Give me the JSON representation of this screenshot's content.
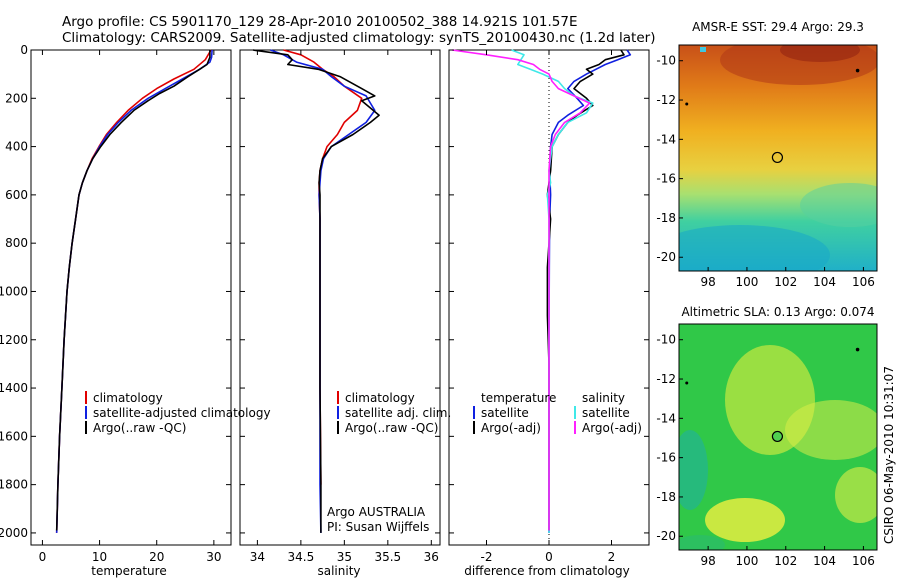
{
  "header": {
    "line1": "Argo profile: CS 5901170_129 28-Apr-2010 20100502_388 14.921S 101.57E",
    "line2": "Climatology: CARS2009. Satellite-adjusted climatology: synTS_20100430.nc (1.2d later)"
  },
  "side_label": "CSIRO 06-May-2010 10:31:07",
  "colors": {
    "climatology": "#e00000",
    "satellite": "#1020e0",
    "argo": "#000000",
    "satellite_salinity": "#40e8e8",
    "argo_salinity_adj": "#ff20ff"
  },
  "chart_data": [
    {
      "id": "temperature",
      "type": "line",
      "xlabel": "temperature",
      "xlim": [
        -2,
        33
      ],
      "xticks": [
        0,
        10,
        20,
        30
      ],
      "ylim": [
        0,
        2050
      ],
      "yticks": [
        0,
        200,
        400,
        600,
        800,
        1000,
        1200,
        1400,
        1600,
        1800,
        2000
      ],
      "y_reversed": true,
      "legend": [
        "climatology",
        "satellite-adjusted climatology",
        "Argo(..raw -QC)"
      ],
      "legend_placement": "lower-right",
      "series": [
        {
          "name": "climatology",
          "color": "#e00000",
          "points": [
            [
              29.5,
              0
            ],
            [
              28.5,
              40
            ],
            [
              26.5,
              80
            ],
            [
              23,
              120
            ],
            [
              20,
              160
            ],
            [
              17.5,
              200
            ],
            [
              15,
              250
            ],
            [
              13,
              300
            ],
            [
              11.2,
              350
            ],
            [
              9.9,
              400
            ],
            [
              8.7,
              450
            ],
            [
              7.8,
              500
            ],
            [
              7,
              550
            ],
            [
              6.4,
              600
            ],
            [
              5.8,
              700
            ],
            [
              5.2,
              800
            ],
            [
              4.7,
              900
            ],
            [
              4.3,
              1000
            ],
            [
              3.8,
              1200
            ],
            [
              3.4,
              1400
            ],
            [
              3,
              1600
            ],
            [
              2.7,
              1800
            ],
            [
              2.5,
              2000
            ]
          ]
        },
        {
          "name": "satellite-adjusted climatology",
          "color": "#1020e0",
          "points": [
            [
              29.7,
              0
            ],
            [
              29.6,
              30
            ],
            [
              29.3,
              50
            ],
            [
              27.5,
              80
            ],
            [
              24.5,
              120
            ],
            [
              21.5,
              160
            ],
            [
              18.5,
              200
            ],
            [
              15.5,
              250
            ],
            [
              13.3,
              300
            ],
            [
              11.4,
              350
            ],
            [
              10,
              400
            ],
            [
              8.8,
              450
            ],
            [
              7.8,
              500
            ],
            [
              7,
              550
            ],
            [
              6.4,
              600
            ],
            [
              5.8,
              700
            ],
            [
              5.2,
              800
            ],
            [
              4.7,
              900
            ],
            [
              4.3,
              1000
            ],
            [
              3.8,
              1200
            ],
            [
              3.4,
              1400
            ],
            [
              3,
              1600
            ],
            [
              2.7,
              1800
            ],
            [
              2.5,
              2000
            ]
          ]
        },
        {
          "name": "Argo(..raw -QC)",
          "color": "#000000",
          "points": [
            [
              29.3,
              0
            ],
            [
              29.3,
              30
            ],
            [
              28.8,
              60
            ],
            [
              27.5,
              80
            ],
            [
              25.5,
              110
            ],
            [
              23,
              150
            ],
            [
              20.5,
              180
            ],
            [
              18.5,
              210
            ],
            [
              16,
              250
            ],
            [
              13.8,
              300
            ],
            [
              11.8,
              350
            ],
            [
              10.2,
              400
            ],
            [
              8.8,
              450
            ],
            [
              7.8,
              500
            ],
            [
              7,
              550
            ],
            [
              6.4,
              600
            ],
            [
              5.8,
              700
            ],
            [
              5.2,
              800
            ],
            [
              4.7,
              900
            ],
            [
              4.3,
              1000
            ],
            [
              3.8,
              1200
            ],
            [
              3.4,
              1400
            ],
            [
              3,
              1600
            ],
            [
              2.7,
              1800
            ],
            [
              2.5,
              1990
            ]
          ]
        }
      ]
    },
    {
      "id": "salinity",
      "type": "line",
      "xlabel": "salinity",
      "xlim": [
        33.8,
        36.1
      ],
      "xticks": [
        34,
        34.5,
        35,
        35.5,
        36
      ],
      "xtick_labels": [
        "34",
        "34.5",
        "35",
        "35.5",
        "36"
      ],
      "ylim": [
        0,
        2050
      ],
      "y_reversed": true,
      "legend": [
        "climatology",
        "satellite adj. clim.",
        "Argo(..raw -QC)"
      ],
      "legend_placement": "lower-right",
      "annotation": [
        "Argo AUSTRALIA",
        "PI: Susan Wijffels"
      ],
      "series": [
        {
          "name": "climatology",
          "color": "#e00000",
          "points": [
            [
              34.3,
              0
            ],
            [
              34.5,
              20
            ],
            [
              34.65,
              50
            ],
            [
              34.75,
              80
            ],
            [
              34.88,
              110
            ],
            [
              35,
              150
            ],
            [
              35.2,
              200
            ],
            [
              35.15,
              250
            ],
            [
              35,
              300
            ],
            [
              34.92,
              350
            ],
            [
              34.8,
              400
            ],
            [
              34.75,
              450
            ],
            [
              34.72,
              500
            ],
            [
              34.71,
              550
            ],
            [
              34.71,
              600
            ],
            [
              34.72,
              700
            ],
            [
              34.72,
              1000
            ],
            [
              34.72,
              1400
            ],
            [
              34.73,
              1800
            ]
          ]
        },
        {
          "name": "satellite adj. clim.",
          "color": "#1020e0",
          "points": [
            [
              34.15,
              0
            ],
            [
              34.3,
              20
            ],
            [
              34.45,
              50
            ],
            [
              34.75,
              80
            ],
            [
              34.85,
              110
            ],
            [
              35,
              150
            ],
            [
              35.25,
              190
            ],
            [
              35.3,
              220
            ],
            [
              35.35,
              250
            ],
            [
              35.25,
              300
            ],
            [
              35.05,
              350
            ],
            [
              34.85,
              400
            ],
            [
              34.76,
              450
            ],
            [
              34.73,
              500
            ],
            [
              34.72,
              550
            ],
            [
              34.71,
              600
            ],
            [
              34.72,
              700
            ],
            [
              34.72,
              1000
            ],
            [
              34.72,
              1400
            ],
            [
              34.72,
              1800
            ],
            [
              34.73,
              2000
            ]
          ]
        },
        {
          "name": "Argo(..raw -QC)",
          "color": "#000000",
          "points": [
            [
              33.95,
              0
            ],
            [
              34.35,
              20
            ],
            [
              34.4,
              40
            ],
            [
              34.35,
              60
            ],
            [
              34.7,
              80
            ],
            [
              34.95,
              110
            ],
            [
              35.2,
              160
            ],
            [
              35.35,
              190
            ],
            [
              35.2,
              210
            ],
            [
              35.3,
              240
            ],
            [
              35.4,
              270
            ],
            [
              35.3,
              300
            ],
            [
              35.1,
              350
            ],
            [
              34.85,
              400
            ],
            [
              34.75,
              450
            ],
            [
              34.72,
              500
            ],
            [
              34.71,
              550
            ],
            [
              34.72,
              600
            ],
            [
              34.72,
              700
            ],
            [
              34.72,
              1000
            ],
            [
              34.72,
              1400
            ],
            [
              34.73,
              1800
            ],
            [
              34.73,
              2000
            ]
          ]
        }
      ]
    },
    {
      "id": "difference",
      "type": "line",
      "xlabel": "difference from climatology",
      "xlim": [
        -3.2,
        3.2
      ],
      "xticks": [
        -2,
        0,
        2
      ],
      "ylim": [
        0,
        2050
      ],
      "y_reversed": true,
      "legend_groups": [
        {
          "title": "temperature",
          "entries": [
            "satellite",
            "Argo(-adj)"
          ]
        },
        {
          "title": "salinity",
          "entries": [
            "satellite",
            "Argo(-adj)"
          ]
        }
      ],
      "legend_placement": "lower-middle",
      "zero_line": true,
      "series": [
        {
          "name": "temperature satellite",
          "color": "#1020e0",
          "points": [
            [
              2.5,
              0
            ],
            [
              2.6,
              20
            ],
            [
              2.2,
              40
            ],
            [
              1.8,
              60
            ],
            [
              1.5,
              80
            ],
            [
              1.2,
              100
            ],
            [
              0.8,
              130
            ],
            [
              0.6,
              160
            ],
            [
              0.9,
              200
            ],
            [
              1.1,
              230
            ],
            [
              0.6,
              270
            ],
            [
              0.3,
              300
            ],
            [
              0.1,
              350
            ],
            [
              0.05,
              400
            ],
            [
              0.02,
              500
            ],
            [
              0.05,
              600
            ],
            [
              0.02,
              700
            ],
            [
              0.01,
              900
            ],
            [
              0,
              1200
            ],
            [
              0,
              1600
            ],
            [
              0,
              2000
            ]
          ]
        },
        {
          "name": "temperature Argo(-adj)",
          "color": "#000000",
          "points": [
            [
              2.3,
              0
            ],
            [
              2.4,
              20
            ],
            [
              1.8,
              40
            ],
            [
              1.6,
              60
            ],
            [
              1.2,
              80
            ],
            [
              1.4,
              100
            ],
            [
              1,
              130
            ],
            [
              0.8,
              160
            ],
            [
              1.2,
              200
            ],
            [
              1.4,
              230
            ],
            [
              0.9,
              270
            ],
            [
              0.6,
              300
            ],
            [
              0.3,
              350
            ],
            [
              0.1,
              400
            ],
            [
              0.05,
              500
            ],
            [
              -0.05,
              600
            ],
            [
              0.05,
              700
            ],
            [
              -0.05,
              900
            ],
            [
              -0.05,
              1100
            ],
            [
              0,
              1300
            ],
            [
              0,
              1600
            ],
            [
              0,
              1990
            ]
          ]
        },
        {
          "name": "salinity satellite",
          "color": "#40e8e8",
          "points": [
            [
              -1.2,
              0
            ],
            [
              -0.8,
              20
            ],
            [
              -0.9,
              40
            ],
            [
              -1,
              60
            ],
            [
              -0.6,
              80
            ],
            [
              -0.2,
              100
            ],
            [
              0.3,
              130
            ],
            [
              0.5,
              160
            ],
            [
              0.8,
              190
            ],
            [
              1.4,
              220
            ],
            [
              1.2,
              260
            ],
            [
              0.6,
              300
            ],
            [
              0.3,
              350
            ],
            [
              0.1,
              400
            ],
            [
              0,
              500
            ],
            [
              0.05,
              550
            ],
            [
              -0.05,
              600
            ],
            [
              0,
              700
            ],
            [
              0,
              900
            ],
            [
              0,
              1200
            ],
            [
              0,
              1600
            ],
            [
              0,
              2000
            ]
          ]
        },
        {
          "name": "salinity Argo(-adj)",
          "color": "#ff20ff",
          "points": [
            [
              -3.1,
              0
            ],
            [
              -2,
              20
            ],
            [
              -1,
              40
            ],
            [
              -0.5,
              60
            ],
            [
              -0.3,
              80
            ],
            [
              0,
              100
            ],
            [
              0.1,
              130
            ],
            [
              0.3,
              160
            ],
            [
              0.8,
              190
            ],
            [
              1.3,
              220
            ],
            [
              1,
              260
            ],
            [
              0.5,
              300
            ],
            [
              0.2,
              350
            ],
            [
              0.05,
              400
            ],
            [
              0,
              500
            ],
            [
              0,
              600
            ],
            [
              0,
              800
            ],
            [
              0,
              1200
            ],
            [
              0,
              1600
            ],
            [
              0,
              1800
            ],
            [
              0,
              1990
            ]
          ]
        }
      ]
    },
    {
      "id": "sst_map",
      "type": "heatmap",
      "title": "AMSR-E SST: 29.4  Argo: 29.3",
      "xlim": [
        96.5,
        106.7
      ],
      "ylim": [
        -20.7,
        -9.2
      ],
      "xticks": [
        98,
        100,
        102,
        104,
        106
      ],
      "yticks": [
        -10,
        -12,
        -14,
        -16,
        -18,
        -20
      ],
      "argo_position": [
        101.57,
        -14.921
      ]
    },
    {
      "id": "sla_map",
      "type": "heatmap",
      "title": "Altimetric SLA: 0.13  Argo: 0.074",
      "xlim": [
        96.5,
        106.7
      ],
      "ylim": [
        -20.7,
        -9.2
      ],
      "xticks": [
        98,
        100,
        102,
        104,
        106
      ],
      "yticks": [
        -10,
        -12,
        -14,
        -16,
        -18,
        -20
      ],
      "argo_position": [
        101.57,
        -14.921
      ]
    }
  ]
}
